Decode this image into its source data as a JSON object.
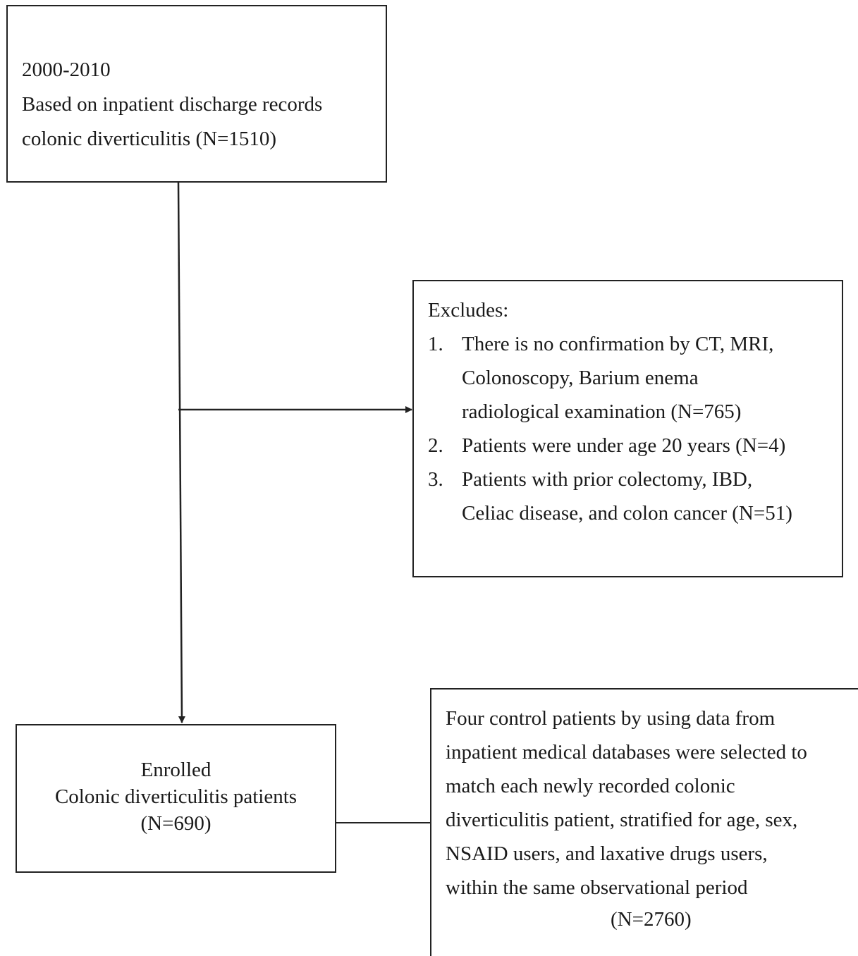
{
  "source_box": {
    "lines": [
      "2000-2010",
      "Based on inpatient discharge records",
      "colonic diverticulitis (N=1510)"
    ]
  },
  "exclusion_box": {
    "heading": "Excludes:",
    "items": [
      {
        "num": "1.",
        "lines": [
          "There is no confirmation by CT, MRI,",
          "Colonoscopy, Barium enema",
          "radiological examination (N=765)"
        ]
      },
      {
        "num": "2.",
        "lines": [
          "Patients were under age 20 years (N=4)"
        ]
      },
      {
        "num": "3.",
        "lines": [
          "Patients with prior colectomy, IBD,",
          "Celiac disease, and colon cancer (N=51)"
        ]
      }
    ]
  },
  "enrolled_box": {
    "lines": [
      "Enrolled",
      "Colonic diverticulitis patients",
      "(N=690)"
    ]
  },
  "control_box": {
    "lines": [
      "Four control patients by using data from",
      "inpatient medical databases were selected to",
      "match each newly recorded colonic",
      "diverticulitis patient, stratified for age, sex,",
      "NSAID users, and laxative drugs users,",
      "within the same observational period"
    ],
    "count": "(N=2760)"
  }
}
